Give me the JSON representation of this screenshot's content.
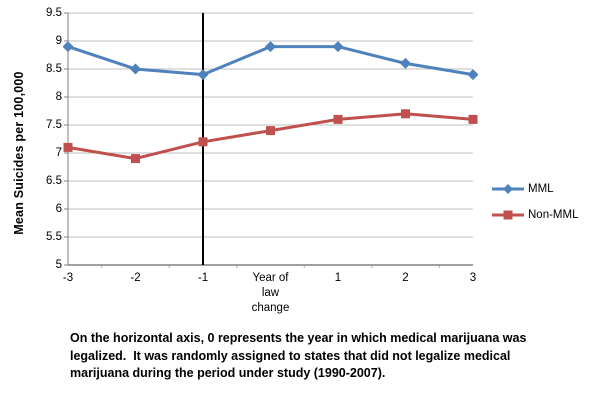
{
  "chart_data": {
    "type": "line",
    "title": "",
    "xlabel": "",
    "ylabel": "Mean Suicides per 100,000",
    "categories": [
      "-3",
      "-2",
      "-1",
      "Year of law change",
      "1",
      "2",
      "3"
    ],
    "x_numeric_meaning": [
      -3,
      -2,
      -1,
      0,
      1,
      2,
      3
    ],
    "y_ticks": [
      "9.5",
      "9",
      "8.5",
      "8",
      "7.5",
      "7",
      "6.5",
      "6",
      "5.5",
      "5"
    ],
    "ylim": [
      5,
      9.5
    ],
    "grid": "horizontal",
    "legend_position": "right",
    "vertical_line_at_category": "-1",
    "series": [
      {
        "name": "MML",
        "color": "#4F81BD",
        "marker": "diamond",
        "values": [
          8.9,
          8.5,
          8.4,
          8.9,
          8.9,
          8.6,
          8.4
        ]
      },
      {
        "name": "Non-MML",
        "color": "#C0504D",
        "marker": "square",
        "values": [
          7.1,
          6.9,
          7.2,
          7.4,
          7.6,
          7.7,
          7.6
        ]
      }
    ],
    "colors": {
      "gridline": "#BFBFBF",
      "axis": "#808080",
      "vertical_line": "#000000",
      "background": "#FFFFFF"
    }
  },
  "caption": "On the horizontal axis, 0 represents the year in which medical marijuana was legalized.  It was randomly assigned to states that did not legalize medical marijuana during the period under study (1990-2007)."
}
